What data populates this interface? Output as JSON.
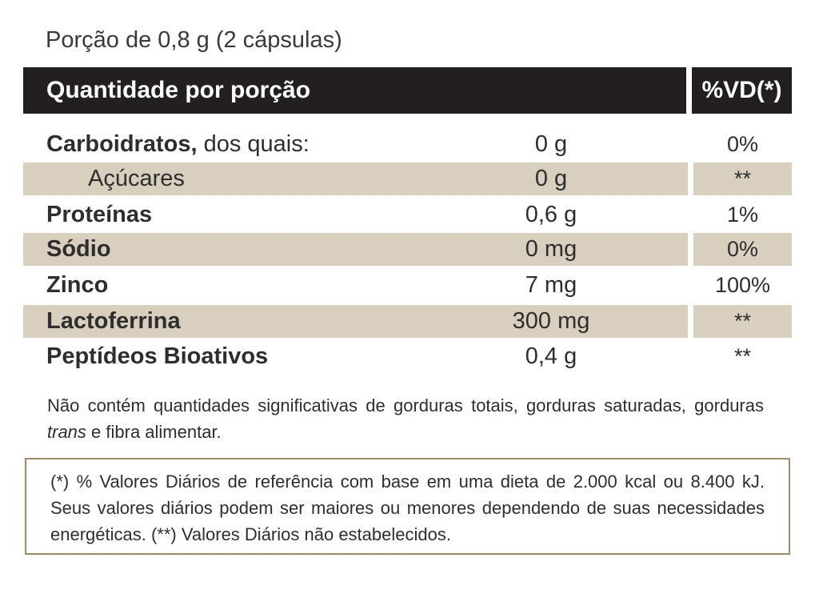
{
  "portion": "Porção de 0,8 g (2 cápsulas)",
  "header": {
    "left": "Quantidade por porção",
    "right": "%VD(*)"
  },
  "rows": [
    {
      "name_bold": "Carboidratos,",
      "name_rest": " dos quais:",
      "amount": "0 g",
      "vd": "0%"
    },
    {
      "name_bold": "",
      "name_rest": "Açúcares",
      "amount": "0 g",
      "vd": "**"
    },
    {
      "name_bold": "Proteínas",
      "name_rest": "",
      "amount": "0,6 g",
      "vd": "1%"
    },
    {
      "name_bold": "Sódio",
      "name_rest": "",
      "amount": "0 mg",
      "vd": "0%"
    },
    {
      "name_bold": "Zinco",
      "name_rest": "",
      "amount": "7 mg",
      "vd": "100%"
    },
    {
      "name_bold": "Lactoferrina",
      "name_rest": "",
      "amount": "300 mg",
      "vd": "**"
    },
    {
      "name_bold": "Peptídeos Bioativos",
      "name_rest": "",
      "amount": "0,4 g",
      "vd": "**"
    }
  ],
  "note": {
    "before": "Não contém quantidades significativas de gorduras totais, gorduras saturadas, gorduras ",
    "italic": "trans",
    "after": " e fibra alimentar."
  },
  "footnote": "(*) % Valores Diários de referência com base em uma dieta de 2.000 kcal ou 8.400 kJ. Seus valores diários podem ser maiores ou menores dependendo de suas necessidades energéticas. (**) Valores Diários não estabelecidos.",
  "colors": {
    "header_bg": "#231f20",
    "shade": "#d8cfbe",
    "border": "#a08a67"
  }
}
